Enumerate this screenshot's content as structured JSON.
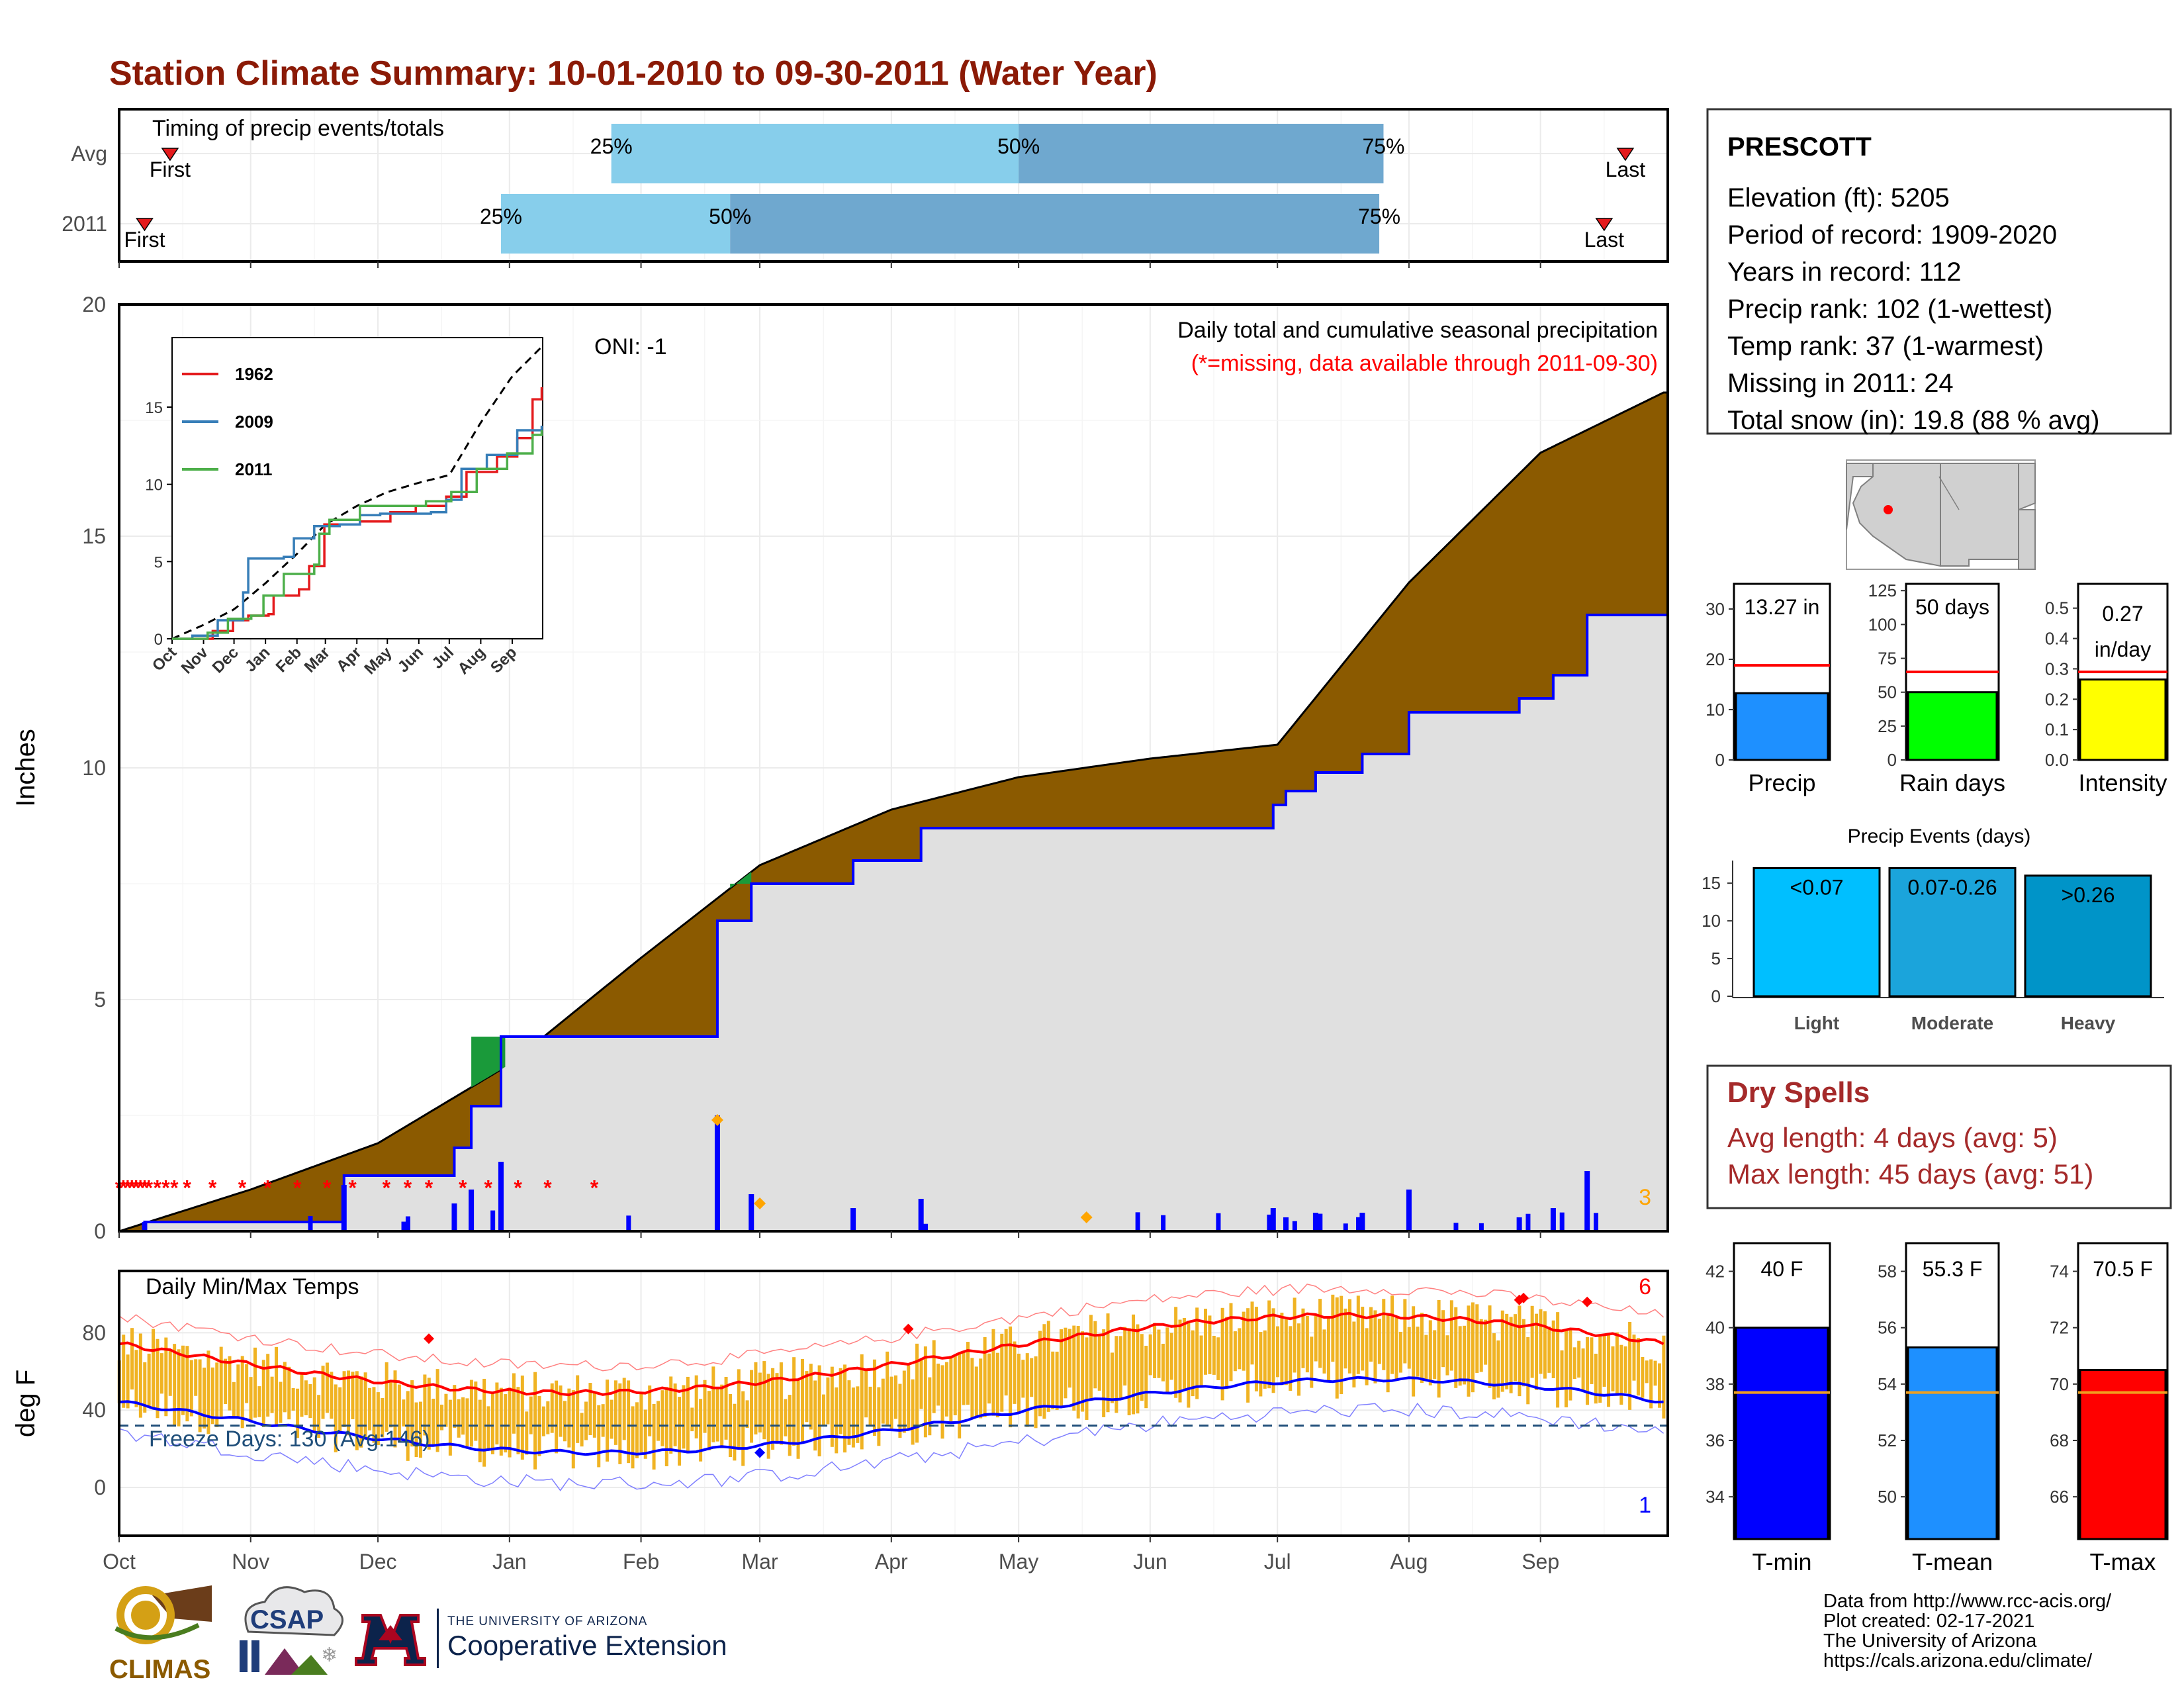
{
  "title": "Station Climate Summary: 10-01-2010 to 09-30-2011 (Water Year)",
  "timing": {
    "panel_label": "Timing of precip events/totals",
    "rows": [
      {
        "label": "Avg",
        "first_day": 12,
        "p25_day": 116,
        "p50_day": 212,
        "p75_day": 298,
        "last_day": 355
      },
      {
        "label": "2011",
        "first_day": 6,
        "p25_day": 90,
        "p50_day": 144,
        "p75_day": 297,
        "last_day": 350
      }
    ],
    "first_label": "First",
    "last_label": "Last",
    "pct_labels": [
      "25%",
      "50%",
      "75%"
    ],
    "colors": {
      "light": "#87ceeb",
      "dark": "#6fa8cf",
      "marker": "#e41a1c"
    }
  },
  "precip_panel": {
    "ylabel": "Inches",
    "yticks": [
      0,
      5,
      10,
      15,
      20
    ],
    "annotation_title": "Daily total and cumulative seasonal precipitation",
    "annotation_missing": "(*=missing, data available through 2011-09-30)",
    "oni": "ONI: -1",
    "corner_count": "3",
    "colors": {
      "avg_fill": "#8b5a00",
      "year_fill": "#e0e0e0",
      "year_line": "#0000ff",
      "above_fill": "#1a9a3a",
      "missing": "#ff0000",
      "bars": "#0000ff",
      "extreme": "#ffa500"
    }
  },
  "inset": {
    "yticks": [
      0,
      5,
      10,
      15
    ],
    "months": [
      "Oct",
      "Nov",
      "Dec",
      "Jan",
      "Feb",
      "Mar",
      "Apr",
      "May",
      "Jun",
      "Jul",
      "Aug",
      "Sep"
    ],
    "legend": [
      {
        "name": "1962",
        "color": "#e41a1c"
      },
      {
        "name": "2009",
        "color": "#377eb8"
      },
      {
        "name": "2011",
        "color": "#4daf4a"
      }
    ]
  },
  "temp_panel": {
    "ylabel": "deg F",
    "yticks": [
      0,
      40,
      80
    ],
    "label": "Daily Min/Max Temps",
    "freeze_text": "Freeze Days: 130 (Avg:146)",
    "top_count": "6",
    "bottom_count": "1",
    "colors": {
      "bars": "#f0b323",
      "mean_max": "#ff0000",
      "mean_min": "#0000ff",
      "freeze": "#1f4e79"
    }
  },
  "x_months": [
    "Oct",
    "Nov",
    "Dec",
    "Jan",
    "Feb",
    "Mar",
    "Apr",
    "May",
    "Jun",
    "Jul",
    "Aug",
    "Sep"
  ],
  "station": {
    "name": "PRESCOTT",
    "lines": [
      "Elevation (ft): 5205",
      "Period of record: 1909-2020",
      "Years in record: 112",
      "Precip rank: 102 (1-wettest)",
      "Temp rank: 37 (1-warmest)",
      "Missing in 2011: 24",
      "Total snow (in): 19.8 (88 % avg)"
    ]
  },
  "summary_bars": [
    {
      "label": "Precip",
      "value_label": "13.27 in",
      "value": 13.27,
      "avg": 18.8,
      "ymax": 35,
      "yticks": [
        0,
        10,
        20,
        30
      ],
      "color": "#1e90ff"
    },
    {
      "label": "Rain days",
      "value_label": "50 days",
      "value": 50,
      "avg": 65,
      "ymax": 130,
      "yticks": [
        0,
        25,
        50,
        75,
        100,
        125
      ],
      "color": "#00ff00"
    },
    {
      "label": "Intensity",
      "value_label": "0.27 in/day",
      "value": 0.265,
      "avg": 0.29,
      "ymax": 0.58,
      "yticks": [
        "0.0",
        "0.1",
        "0.2",
        "0.3",
        "0.4",
        "0.5"
      ],
      "color": "#ffff00"
    }
  ],
  "precip_events": {
    "title": "Precip Events (days)",
    "ymax": 18,
    "yticks": [
      0,
      5,
      10,
      15
    ],
    "bars": [
      {
        "category": "Light",
        "value": 17,
        "label": "<0.07",
        "color": "#00bfff"
      },
      {
        "category": "Moderate",
        "value": 17,
        "label": "0.07-0.26",
        "color": "#1ba4db"
      },
      {
        "category": "Heavy",
        "value": 16,
        "label": ">0.26",
        "color": "#0094c8"
      }
    ]
  },
  "dry_spells": {
    "title": "Dry Spells",
    "avg_length": "Avg length: 4 days (avg: 5)",
    "max_length": "Max length: 45 days (avg: 51)"
  },
  "temp_bars": [
    {
      "label": "T-min",
      "value_label": "40 F",
      "value": 40,
      "avg": 37.7,
      "ymin": 32.5,
      "ymax": 43,
      "yticks": [
        34,
        36,
        38,
        40,
        42
      ],
      "color": "#0000ff"
    },
    {
      "label": "T-mean",
      "value_label": "55.3 F",
      "value": 55.3,
      "avg": 53.7,
      "ymin": 48.5,
      "ymax": 59,
      "yticks": [
        50,
        52,
        54,
        56,
        58
      ],
      "color": "#1e90ff"
    },
    {
      "label": "T-max",
      "value_label": "70.5 F",
      "value": 70.5,
      "avg": 69.7,
      "ymin": 64.5,
      "ymax": 75,
      "yticks": [
        66,
        68,
        70,
        72,
        74
      ],
      "color": "#ff0000"
    }
  ],
  "footer": {
    "lines": [
      "Data from http://www.rcc-acis.org/",
      "Plot created: 02-17-2021",
      "The University of Arizona",
      "https://cals.arizona.edu/climate/"
    ],
    "logo_climas": "CLIMAS",
    "logo_csap": "CSAP",
    "ua_small": "THE UNIVERSITY OF ARIZONA",
    "ua_large": "Cooperative Extension"
  },
  "chart_data": {
    "type": "area",
    "title": "Daily total and cumulative seasonal precipitation",
    "ylabel": "Inches",
    "ylim": [
      0,
      20
    ],
    "x_range": [
      "2010-10-01",
      "2011-09-30"
    ],
    "series": [
      {
        "name": "Avg",
        "x": [
          "2010-10-01",
          "2010-11-01",
          "2010-12-01",
          "2011-01-01",
          "2011-02-01",
          "2011-03-01",
          "2011-04-01",
          "2011-05-01",
          "2011-06-01",
          "2011-07-01",
          "2011-08-01",
          "2011-09-01",
          "2011-09-30"
        ],
        "values": [
          0,
          0.9,
          1.9,
          3.6,
          5.9,
          7.9,
          9.1,
          9.8,
          10.2,
          10.5,
          14.0,
          16.8,
          18.1
        ]
      },
      {
        "name": "2011",
        "x": [
          "2010-10-01",
          "2010-10-07",
          "2010-10-31",
          "2010-11-23",
          "2010-12-17",
          "2010-12-19",
          "2010-12-23",
          "2010-12-30",
          "2011-02-18",
          "2011-02-19",
          "2011-02-27",
          "2011-03-23",
          "2011-04-08",
          "2011-05-08",
          "2011-06-30",
          "2011-07-03",
          "2011-07-10",
          "2011-07-21",
          "2011-08-01",
          "2011-08-27",
          "2011-09-04",
          "2011-09-12",
          "2011-09-30"
        ],
        "values": [
          0,
          0.2,
          0.2,
          1.2,
          1.2,
          1.8,
          2.7,
          4.2,
          4.2,
          6.7,
          7.5,
          8.0,
          8.7,
          8.7,
          9.2,
          9.5,
          9.9,
          10.3,
          11.2,
          11.5,
          12.0,
          13.3,
          13.3
        ]
      }
    ]
  }
}
